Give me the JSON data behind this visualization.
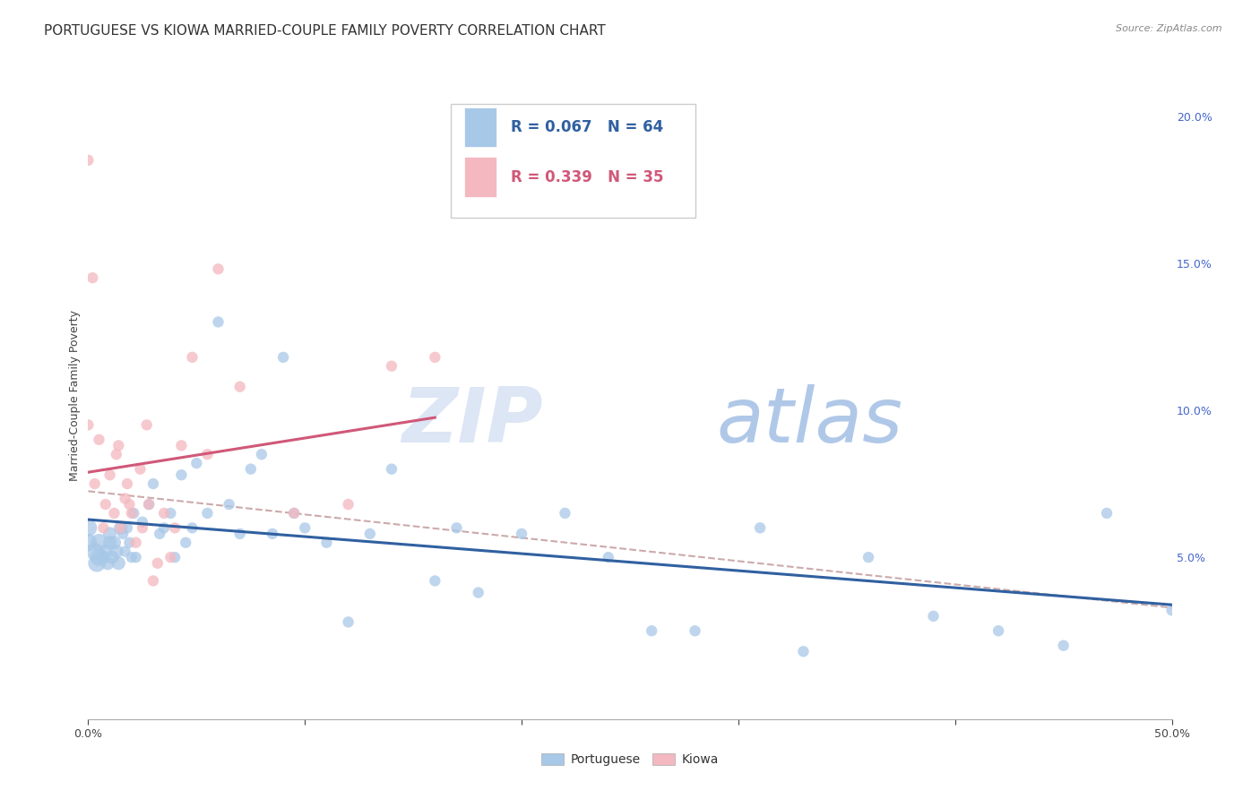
{
  "title": "PORTUGUESE VS KIOWA MARRIED-COUPLE FAMILY POVERTY CORRELATION CHART",
  "source": "Source: ZipAtlas.com",
  "ylabel": "Married-Couple Family Poverty",
  "xlim": [
    0,
    0.5
  ],
  "ylim": [
    -0.005,
    0.215
  ],
  "watermark_zip": "ZIP",
  "watermark_atlas": "atlas",
  "portuguese_R": 0.067,
  "portuguese_N": 64,
  "kiowa_R": 0.339,
  "kiowa_N": 35,
  "portuguese_color": "#a8c8e8",
  "kiowa_color": "#f4b8c0",
  "trendline_portuguese_color": "#3060a0",
  "trendline_kiowa_color": "#d05878",
  "trendline_dashed_color": "#ccaaaa",
  "background_color": "#ffffff",
  "plot_bg_color": "#ffffff",
  "grid_color": "#e0e0e0",
  "title_fontsize": 11,
  "axis_label_fontsize": 9,
  "tick_fontsize": 9,
  "legend_fontsize": 12,
  "portuguese_x": [
    0.0,
    0.0,
    0.003,
    0.004,
    0.005,
    0.005,
    0.007,
    0.008,
    0.009,
    0.01,
    0.01,
    0.011,
    0.012,
    0.013,
    0.014,
    0.015,
    0.016,
    0.017,
    0.018,
    0.019,
    0.02,
    0.021,
    0.022,
    0.025,
    0.028,
    0.03,
    0.033,
    0.035,
    0.038,
    0.04,
    0.043,
    0.045,
    0.048,
    0.05,
    0.055,
    0.06,
    0.065,
    0.07,
    0.075,
    0.08,
    0.085,
    0.09,
    0.095,
    0.1,
    0.11,
    0.12,
    0.13,
    0.14,
    0.16,
    0.17,
    0.18,
    0.2,
    0.22,
    0.24,
    0.26,
    0.28,
    0.31,
    0.33,
    0.36,
    0.39,
    0.42,
    0.45,
    0.47,
    0.5
  ],
  "portuguese_y": [
    0.055,
    0.06,
    0.052,
    0.048,
    0.05,
    0.055,
    0.05,
    0.052,
    0.048,
    0.055,
    0.058,
    0.05,
    0.055,
    0.052,
    0.048,
    0.06,
    0.058,
    0.052,
    0.06,
    0.055,
    0.05,
    0.065,
    0.05,
    0.062,
    0.068,
    0.075,
    0.058,
    0.06,
    0.065,
    0.05,
    0.078,
    0.055,
    0.06,
    0.082,
    0.065,
    0.13,
    0.068,
    0.058,
    0.08,
    0.085,
    0.058,
    0.118,
    0.065,
    0.06,
    0.055,
    0.028,
    0.058,
    0.08,
    0.042,
    0.06,
    0.038,
    0.058,
    0.065,
    0.05,
    0.025,
    0.025,
    0.06,
    0.018,
    0.05,
    0.03,
    0.025,
    0.02,
    0.065,
    0.032
  ],
  "kiowa_x": [
    0.0,
    0.0,
    0.002,
    0.003,
    0.005,
    0.007,
    0.008,
    0.01,
    0.012,
    0.013,
    0.014,
    0.015,
    0.017,
    0.018,
    0.019,
    0.02,
    0.022,
    0.024,
    0.025,
    0.027,
    0.028,
    0.03,
    0.032,
    0.035,
    0.038,
    0.04,
    0.043,
    0.048,
    0.055,
    0.06,
    0.07,
    0.095,
    0.12,
    0.14,
    0.16
  ],
  "kiowa_y": [
    0.185,
    0.095,
    0.145,
    0.075,
    0.09,
    0.06,
    0.068,
    0.078,
    0.065,
    0.085,
    0.088,
    0.06,
    0.07,
    0.075,
    0.068,
    0.065,
    0.055,
    0.08,
    0.06,
    0.095,
    0.068,
    0.042,
    0.048,
    0.065,
    0.05,
    0.06,
    0.088,
    0.118,
    0.085,
    0.148,
    0.108,
    0.065,
    0.068,
    0.115,
    0.118
  ]
}
